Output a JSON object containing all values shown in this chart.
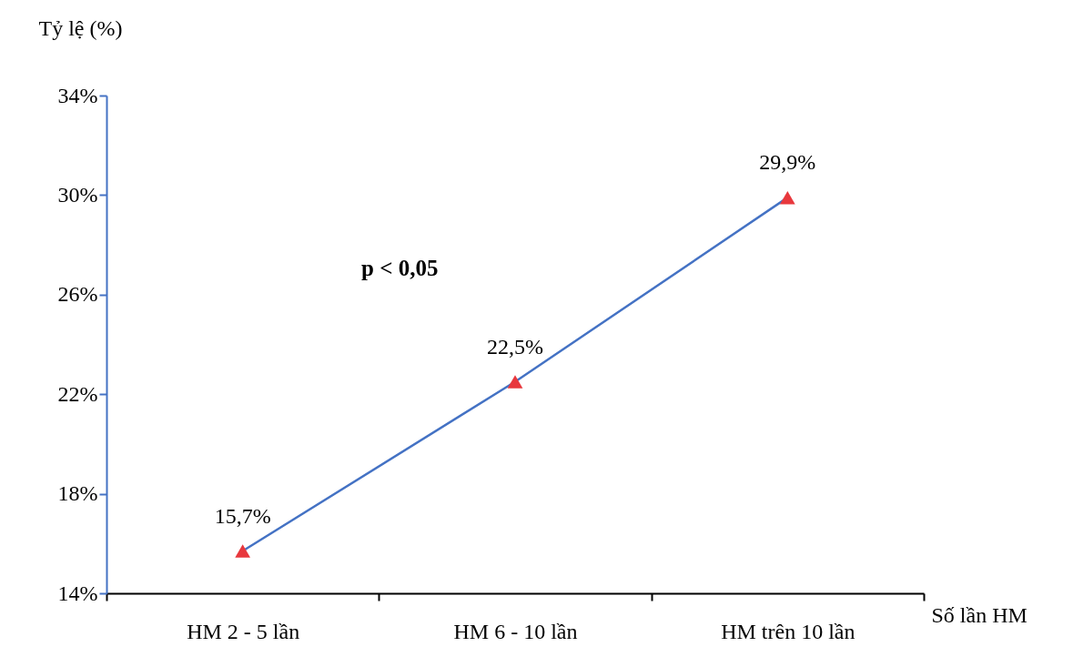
{
  "chart_data": {
    "type": "line",
    "ylabel": "Tỷ lệ (%)",
    "xlabel": "Số lần HM",
    "categories": [
      "HM 2 - 5 lần",
      "HM 6 - 10 lần",
      "HM trên 10 lần"
    ],
    "series": [
      {
        "color": "#4472c4",
        "colors": [
          "#e8383d",
          "#e8383d",
          "#e8383d"
        ],
        "values": [
          15.7,
          22.5,
          29.9
        ],
        "value_labels": [
          "15,7%",
          "22,5%",
          "29,9%"
        ]
      }
    ],
    "ylim": [
      14,
      34
    ],
    "yticks": [
      {
        "value": 14,
        "label": "14%"
      },
      {
        "value": 18,
        "label": "18%"
      },
      {
        "value": 22,
        "label": "22%"
      },
      {
        "value": 26,
        "label": "26%"
      },
      {
        "value": 30,
        "label": "30%"
      },
      {
        "value": 34,
        "label": "34%"
      }
    ],
    "marker": "triangle",
    "annotations": [
      "p < 0,05"
    ]
  }
}
